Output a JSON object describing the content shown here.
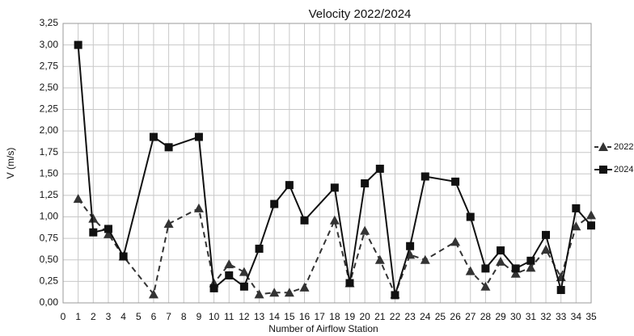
{
  "chart_data": {
    "type": "line",
    "title": "Velocity 2022/2024",
    "x_label": "Number of Airflow Station",
    "y_label": "V (m/s)",
    "x": [
      1,
      2,
      3,
      4,
      6,
      7,
      9,
      10,
      11,
      12,
      13,
      14,
      15,
      16,
      18,
      19,
      20,
      21,
      22,
      23,
      24,
      26,
      27,
      28,
      29,
      30,
      31,
      32,
      33,
      34,
      35
    ],
    "series": [
      {
        "name": "2022",
        "color": "#333333",
        "dash": true,
        "marker": "triangle",
        "values": [
          1.21,
          0.98,
          0.8,
          0.54,
          0.1,
          0.92,
          1.1,
          0.23,
          0.45,
          0.36,
          0.1,
          0.12,
          0.12,
          0.18,
          0.96,
          0.23,
          0.84,
          0.5,
          0.1,
          0.56,
          0.5,
          0.71,
          0.37,
          0.19,
          0.48,
          0.34,
          0.41,
          0.62,
          0.3,
          0.89,
          1.02
        ]
      },
      {
        "name": "2024",
        "color": "#111111",
        "dash": false,
        "marker": "square",
        "values": [
          3.0,
          0.82,
          0.86,
          0.54,
          1.93,
          1.81,
          1.93,
          0.17,
          0.32,
          0.19,
          0.63,
          1.15,
          1.37,
          0.96,
          1.34,
          0.23,
          1.39,
          1.56,
          0.09,
          0.66,
          1.47,
          1.41,
          1.0,
          0.4,
          0.61,
          0.4,
          0.49,
          0.79,
          0.15,
          1.1,
          0.9
        ]
      }
    ],
    "xlim": [
      0,
      35
    ],
    "xticks": [
      0,
      1,
      2,
      3,
      4,
      5,
      6,
      7,
      8,
      9,
      10,
      11,
      12,
      13,
      14,
      15,
      16,
      17,
      18,
      19,
      20,
      21,
      22,
      23,
      24,
      25,
      26,
      27,
      28,
      29,
      30,
      31,
      32,
      33,
      34,
      35
    ],
    "ylim": [
      0,
      3.25
    ],
    "yticks": [
      {
        "value": 0,
        "label": "0,00"
      },
      {
        "value": 0.25,
        "label": "0,25"
      },
      {
        "value": 0.5,
        "label": "0,50"
      },
      {
        "value": 0.75,
        "label": "0,75"
      },
      {
        "value": 1,
        "label": "1,00"
      },
      {
        "value": 1.25,
        "label": "1,25"
      },
      {
        "value": 1.5,
        "label": "1,50"
      },
      {
        "value": 1.75,
        "label": "1,75"
      },
      {
        "value": 2,
        "label": "2,00"
      },
      {
        "value": 2.25,
        "label": "2,25"
      },
      {
        "value": 2.5,
        "label": "2,50"
      },
      {
        "value": 2.75,
        "label": "2,75"
      },
      {
        "value": 3,
        "label": "3,00"
      },
      {
        "value": 3.25,
        "label": "3,25"
      }
    ],
    "grid": true,
    "legend": "right"
  }
}
